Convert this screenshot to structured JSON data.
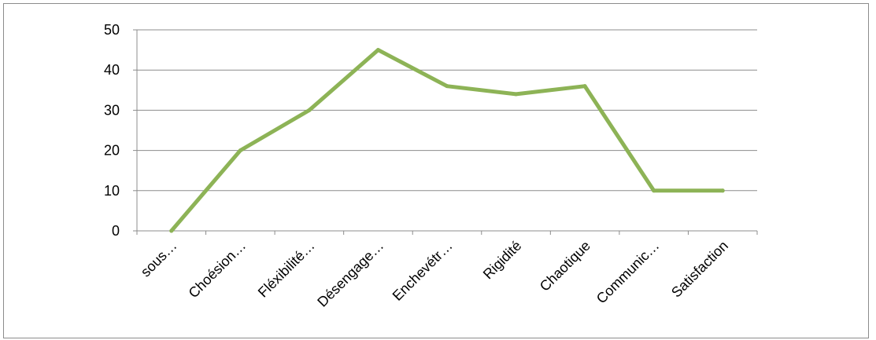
{
  "chart_data": {
    "type": "line",
    "title": "",
    "xlabel": "",
    "ylabel": "",
    "categories": [
      "sous…",
      "Choésion…",
      "Fléxibilité…",
      "Désengage…",
      "Enchevétr…",
      "Rigidité",
      "Chaotique",
      "Communic…",
      "Satisfaction"
    ],
    "series": [
      {
        "values": [
          0,
          20,
          30,
          45,
          36,
          34,
          36,
          10,
          10
        ],
        "color": "#8db356"
      }
    ],
    "ylim": [
      0,
      50
    ],
    "yticks": [
      0,
      10,
      20,
      30,
      40,
      50
    ],
    "grid": true,
    "legend": "none",
    "gridline_color": "#8c8c8c",
    "axis_color": "#8c8c8c"
  }
}
